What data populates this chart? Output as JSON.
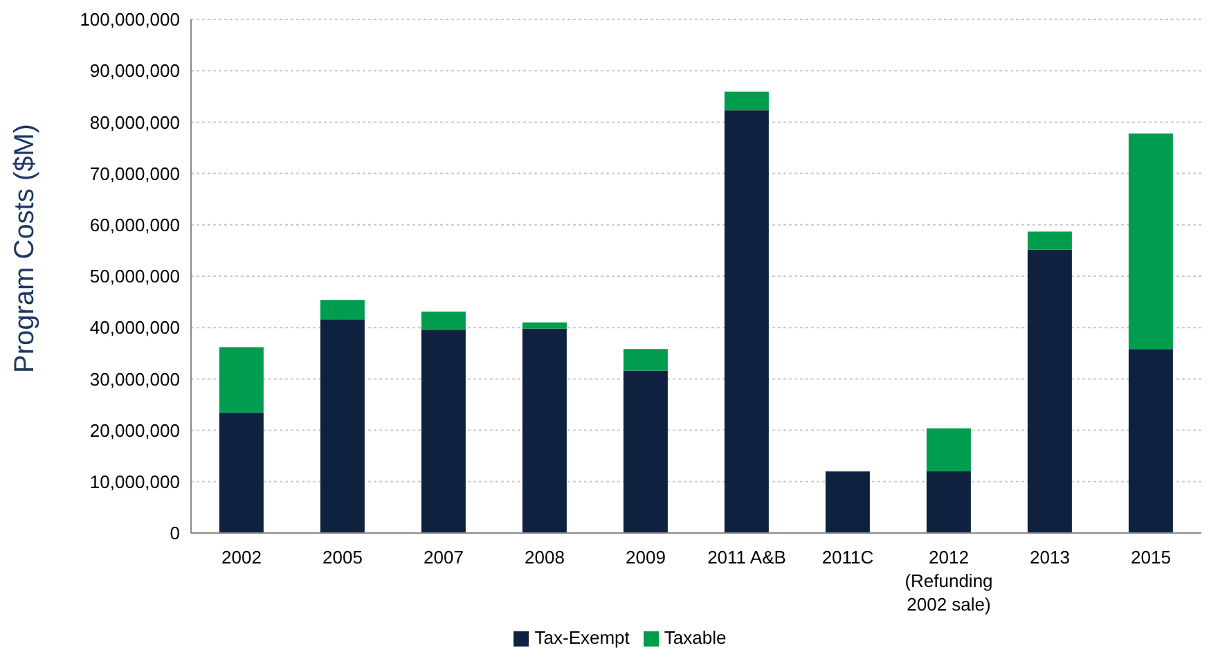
{
  "chart_data": {
    "type": "bar",
    "stacked": true,
    "ylabel": "Program Costs ($M)",
    "categories": [
      "2002",
      "2005",
      "2007",
      "2008",
      "2009",
      "2011 A&B",
      "2011C",
      "2012\n(Refunding\n2002 sale)",
      "2013",
      "2015"
    ],
    "series": [
      {
        "name": "Tax-Exempt",
        "color": "#0e2240",
        "values": [
          23400000,
          41600000,
          39600000,
          39800000,
          31600000,
          82300000,
          12000000,
          12000000,
          55200000,
          35800000
        ]
      },
      {
        "name": "Taxable",
        "color": "#009d4e",
        "values": [
          12800000,
          3800000,
          3500000,
          1200000,
          4200000,
          3600000,
          0,
          8400000,
          3500000,
          42000000
        ]
      }
    ],
    "ylim": [
      0,
      100000000
    ],
    "yticks": [
      0,
      {
        "value": 10000000,
        "label": "10,000,000"
      },
      {
        "value": 20000000,
        "label": "20,000,000"
      },
      {
        "value": 30000000,
        "label": "30,000,000"
      },
      {
        "value": 40000000,
        "label": "40,000,000"
      },
      {
        "value": 50000000,
        "label": "50,000,000"
      },
      {
        "value": 60000000,
        "label": "60,000,000"
      },
      {
        "value": 70000000,
        "label": "70,000,000"
      },
      {
        "value": 80000000,
        "label": "80,000,000"
      },
      {
        "value": 90000000,
        "label": "90,000,000"
      },
      {
        "value": 100000000,
        "label": "100,000,000"
      }
    ],
    "grid": "y",
    "legend": "bottom"
  }
}
